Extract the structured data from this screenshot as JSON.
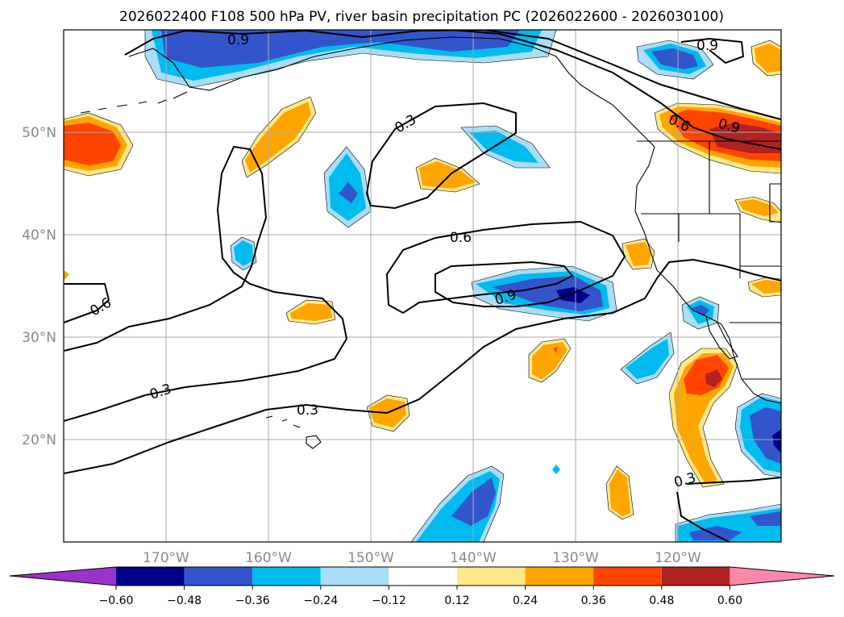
{
  "title": "2026022400 F108 500 hPa PV, river basin precipitation PC (2026022600 - 2026030100)",
  "map": {
    "lon_range": [
      -180,
      -110
    ],
    "lat_range": [
      10,
      60
    ],
    "lat_labels": [
      "50°N",
      "40°N",
      "30°N",
      "20°N"
    ],
    "lon_labels": [
      "170°W",
      "160°W",
      "150°W",
      "140°W",
      "130°W",
      "120°W"
    ],
    "contour_labels": [
      "0.9",
      "0.9",
      "0.6",
      "0.9",
      "0.3",
      "0.6",
      "0.9",
      "0.6",
      "0.3",
      "0.3",
      "0.3"
    ]
  },
  "colorbar": {
    "tick_labels": [
      "−0.60",
      "−0.48",
      "−0.36",
      "−0.24",
      "−0.12",
      "0.12",
      "0.24",
      "0.36",
      "0.48",
      "0.60"
    ],
    "colors": [
      "#9933cc",
      "#000088",
      "#3355cc",
      "#00bbee",
      "#aaddf7",
      "#ffffff",
      "#ffe888",
      "#ffa500",
      "#ff4400",
      "#b22222",
      "#ff88aa"
    ]
  },
  "palette": {
    "neg_light": "#aaddf7",
    "neg_mid": "#00bbee",
    "neg_strong": "#3355cc",
    "neg_max": "#000088",
    "pos_light": "#ffe888",
    "pos_mid": "#ffa500",
    "pos_strong": "#ff4400",
    "pos_max": "#b22222"
  }
}
